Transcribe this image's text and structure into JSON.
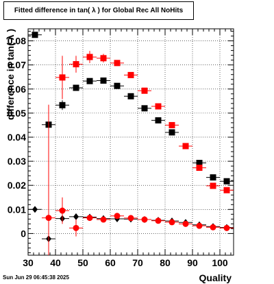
{
  "chart_data": {
    "type": "scatter",
    "title": "Fitted difference in tan( λ ) for Global Rec All NoHits",
    "xlabel": "Quality",
    "ylabel": "difference in tan( λ )",
    "xlim": [
      30,
      105
    ],
    "ylim": [
      -0.009,
      0.085
    ],
    "x_ticks": [
      30,
      40,
      50,
      60,
      70,
      80,
      90,
      100
    ],
    "y_ticks": [
      0,
      0.01,
      0.02,
      0.03,
      0.04,
      0.05,
      0.06,
      0.07,
      0.08
    ],
    "y_tick_labels": [
      "0",
      "0.01",
      "0.02",
      "0.03",
      "0.04",
      "0.05",
      "0.06",
      "0.07",
      "0.08"
    ],
    "grid": true,
    "series": [
      {
        "color": "#000000",
        "marker": "square",
        "x": [
          32.5,
          37.5,
          42.5,
          47.5,
          52.5,
          57.5,
          62.5,
          67.5,
          72.5,
          77.5,
          82.5,
          87.5,
          92.5,
          97.5,
          102.5
        ],
        "y": [
          0.0825,
          0.0452,
          0.0533,
          0.0605,
          0.0633,
          0.0635,
          0.0613,
          0.057,
          0.052,
          0.047,
          0.042,
          null,
          0.0293,
          0.0233,
          0.0217
        ],
        "yerr": [
          0.0005,
          0.004,
          0.002,
          0.0005,
          0.0005,
          0.0005,
          0.0005,
          0.0005,
          0.0005,
          0.0005,
          0.0005,
          null,
          0.0005,
          0.0005,
          0.0005
        ]
      },
      {
        "color": "#ff0000",
        "marker": "square",
        "x": [
          37.5,
          42.5,
          47.5,
          52.5,
          57.5,
          62.5,
          67.5,
          72.5,
          77.5,
          82.5,
          87.5,
          92.5,
          97.5,
          102.5
        ],
        "y": [
          null,
          0.0648,
          0.0703,
          0.0733,
          0.0728,
          0.0708,
          0.0658,
          0.0593,
          0.0528,
          0.045,
          0.0363,
          0.0273,
          0.0198,
          0.018
        ],
        "yerr": [
          null,
          0.009,
          0.0035,
          0.0025,
          0.0018,
          0.0012,
          0.0008,
          0.0006,
          0.0005,
          0.0005,
          0.0005,
          0.0005,
          0.0005,
          0.0005
        ]
      },
      {
        "color": "#000000",
        "marker": "diamond",
        "x": [
          32.5,
          37.5,
          42.5,
          47.5,
          52.5,
          57.5,
          62.5,
          67.5,
          72.5,
          77.5,
          82.5,
          87.5,
          92.5,
          97.5,
          102.5
        ],
        "y": [
          0.01,
          -0.0022,
          0.0062,
          0.007,
          0.0068,
          0.0062,
          0.0061,
          0.006,
          0.0058,
          0.0055,
          0.0052,
          0.0046,
          0.0036,
          0.0029,
          0.0025
        ],
        "yerr": [
          0.0005,
          0.0015,
          0.001,
          0.0005,
          0.0005,
          0.0005,
          0.0005,
          0.0005,
          0.0005,
          0.0005,
          0.0005,
          0.0005,
          0.0005,
          0.0005,
          0.0005
        ]
      },
      {
        "color": "#ff0000",
        "marker": "circle",
        "x": [
          37.5,
          42.5,
          47.5,
          52.5,
          57.5,
          62.5,
          67.5,
          72.5,
          77.5,
          82.5,
          87.5,
          92.5,
          97.5,
          102.5
        ],
        "y": [
          0.0065,
          0.0095,
          0.0023,
          0.0065,
          0.0058,
          0.0073,
          0.0064,
          0.0058,
          0.0053,
          0.0047,
          0.004,
          0.0032,
          0.0026,
          0.0023
        ],
        "yerr": [
          0.047,
          0.0055,
          0.0035,
          0.0012,
          0.0008,
          0.0006,
          0.0005,
          0.0005,
          0.0005,
          0.0005,
          0.0005,
          0.0005,
          0.0005,
          0.0005
        ]
      }
    ]
  },
  "footer": {
    "date": "Sun Jun 29 06:45:38 2025"
  }
}
